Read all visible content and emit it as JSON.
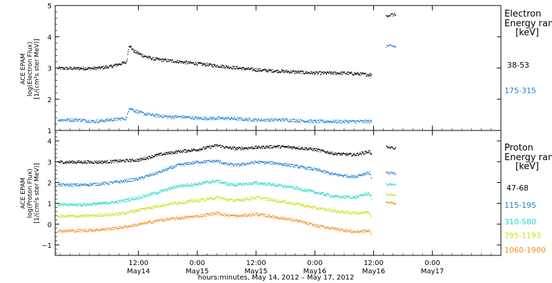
{
  "colors": {
    "black": "#000000",
    "blue": "#1e7fd2",
    "cyan": "#22d6cc",
    "yellow": "#c9e21a",
    "orange": "#f09120"
  },
  "chart_data": [
    {
      "type": "scatter",
      "panel": "electron",
      "ylabel": [
        "ACE EPAM",
        "log(Electron Flux)",
        "[1/(cm²s ster MeV)]"
      ],
      "ylim": [
        1,
        5
      ],
      "yticks": [
        1,
        2,
        3,
        4,
        5
      ],
      "legend_title": [
        "Electron",
        "Energy range",
        "[keV]"
      ],
      "x_data_range": [
        -5,
        67
      ],
      "series": [
        {
          "name": "38-53",
          "color": "#000000",
          "x": [
            0,
            3,
            6,
            9.5,
            10,
            11,
            13,
            15,
            18,
            21,
            24,
            30,
            36,
            42,
            48,
            54,
            59,
            59.5
          ],
          "y": [
            3.0,
            3.0,
            3.05,
            3.2,
            3.75,
            3.55,
            3.4,
            3.3,
            3.25,
            3.2,
            3.15,
            3.05,
            2.95,
            2.9,
            2.85,
            2.85,
            2.8,
            2.8
          ]
        },
        {
          "name": "175-315",
          "color": "#1e7fd2",
          "x": [
            0,
            3,
            6,
            9.5,
            10,
            11,
            13,
            15,
            18,
            21,
            24,
            30,
            36,
            42,
            48,
            54,
            59,
            59.5
          ],
          "y": [
            1.35,
            1.3,
            1.35,
            1.4,
            1.75,
            1.65,
            1.55,
            1.5,
            1.45,
            1.45,
            1.4,
            1.4,
            1.35,
            1.35,
            1.3,
            1.3,
            1.3,
            1.3
          ]
        }
      ],
      "post_gap": [
        {
          "series": "38-53",
          "x": [
            62.5,
            64.5
          ],
          "y": [
            4.7,
            4.72
          ]
        },
        {
          "series": "175-315",
          "x": [
            62.5,
            64.5
          ],
          "y": [
            3.72,
            3.7
          ]
        }
      ]
    },
    {
      "type": "scatter",
      "panel": "proton",
      "ylabel": [
        "ACE EPAM",
        "log(Proton Flux)",
        "[1/(cm²s ster MeV)]"
      ],
      "ylim": [
        -1.5,
        4.5
      ],
      "yticks": [
        -1,
        0,
        1,
        2,
        3,
        4
      ],
      "legend_title": [
        "Proton",
        "Energy range",
        "[keV]"
      ],
      "x_data_range": [
        -5,
        67
      ],
      "xticks": [
        {
          "x": 12,
          "top": "12:00",
          "bottom": "May14"
        },
        {
          "x": 24,
          "top": "0:00",
          "bottom": "May15"
        },
        {
          "x": 36,
          "top": "12:00",
          "bottom": "May15"
        },
        {
          "x": 48,
          "top": "0:00",
          "bottom": "May16"
        },
        {
          "x": 60,
          "top": "12:00",
          "bottom": "May16"
        },
        {
          "x": 72,
          "top": "0:00",
          "bottom": "May17"
        }
      ],
      "xlabel": "hours:minutes, May 14, 2012 – May 17, 2012",
      "series": [
        {
          "name": "47-68",
          "color": "#000000",
          "x": [
            0,
            4,
            8,
            12,
            16,
            20,
            24,
            28,
            30,
            32,
            36,
            40,
            44,
            48,
            52,
            56,
            59,
            60,
            62,
            66,
            72
          ],
          "y": [
            3.0,
            3.0,
            3.05,
            3.1,
            3.35,
            3.5,
            3.6,
            3.8,
            3.7,
            3.65,
            3.7,
            3.75,
            3.7,
            3.6,
            3.4,
            3.35,
            3.5,
            3.35,
            3.2,
            3.15,
            3.15
          ]
        },
        {
          "name": "115-195",
          "color": "#1e7fd2",
          "x": [
            0,
            4,
            8,
            12,
            16,
            20,
            24,
            28,
            30,
            32,
            36,
            40,
            44,
            48,
            52,
            56,
            59,
            60,
            62,
            66,
            72
          ],
          "y": [
            1.9,
            1.95,
            2.05,
            2.2,
            2.5,
            2.85,
            3.0,
            3.05,
            2.9,
            2.85,
            3.0,
            2.95,
            2.8,
            2.65,
            2.4,
            2.3,
            2.5,
            2.0,
            1.95,
            1.95,
            1.95
          ]
        },
        {
          "name": "310-580",
          "color": "#22d6cc",
          "x": [
            0,
            4,
            8,
            12,
            16,
            20,
            24,
            28,
            30,
            32,
            36,
            40,
            44,
            48,
            52,
            56,
            59,
            60,
            62,
            66,
            72
          ],
          "y": [
            0.95,
            1.0,
            1.1,
            1.3,
            1.55,
            1.85,
            1.95,
            2.1,
            1.95,
            1.9,
            2.0,
            1.9,
            1.75,
            1.55,
            1.35,
            1.3,
            1.5,
            1.0,
            0.9,
            0.85,
            0.8
          ]
        },
        {
          "name": "795-1193",
          "color": "#c9e21a",
          "x": [
            0,
            4,
            8,
            12,
            16,
            20,
            24,
            28,
            30,
            32,
            36,
            40,
            44,
            48,
            52,
            56,
            59,
            60,
            62,
            66,
            72
          ],
          "y": [
            0.4,
            0.45,
            0.5,
            0.7,
            0.9,
            1.05,
            1.15,
            1.3,
            1.2,
            1.15,
            1.3,
            1.15,
            1.0,
            0.8,
            0.65,
            0.55,
            0.6,
            0.2,
            0.1,
            0.05,
            0.0
          ]
        },
        {
          "name": "1060-1900",
          "color": "#f09120",
          "x": [
            0,
            4,
            8,
            12,
            16,
            20,
            24,
            28,
            30,
            32,
            36,
            40,
            44,
            48,
            52,
            56,
            59,
            60,
            62,
            66,
            72
          ],
          "y": [
            -0.3,
            -0.25,
            -0.15,
            0.0,
            0.2,
            0.3,
            0.4,
            0.55,
            0.45,
            0.4,
            0.5,
            0.35,
            0.2,
            -0.05,
            -0.2,
            -0.35,
            -0.3,
            -0.6,
            -0.7,
            -0.75,
            -0.8
          ]
        }
      ],
      "post_gap": [
        {
          "series": "47-68",
          "x": [
            62.5,
            64.5
          ],
          "y": [
            3.75,
            3.65
          ]
        },
        {
          "series": "115-195",
          "x": [
            62.5,
            64.5
          ],
          "y": [
            2.5,
            2.45
          ]
        },
        {
          "series": "310-580",
          "x": [
            62.5,
            64.5
          ],
          "y": [
            1.95,
            1.9
          ]
        },
        {
          "series": "795-1193",
          "x": [
            62.5,
            64.5
          ],
          "y": [
            1.45,
            1.4
          ]
        },
        {
          "series": "1060-1900",
          "x": [
            62.5,
            64.5
          ],
          "y": [
            1.1,
            1.0
          ]
        }
      ]
    }
  ]
}
